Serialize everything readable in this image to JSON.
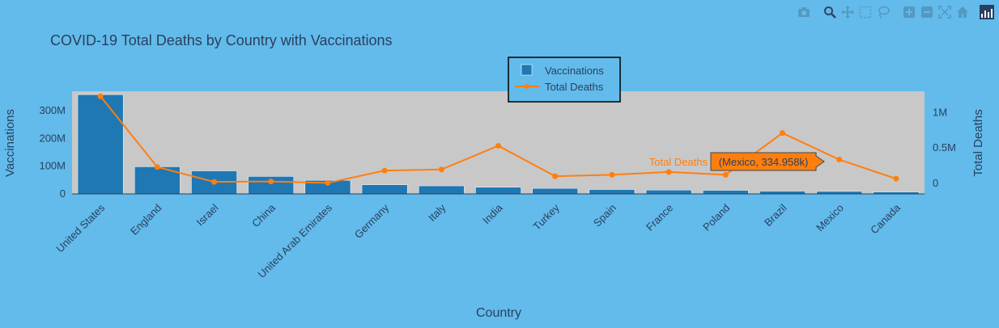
{
  "modebar": {
    "icons": [
      "camera-icon",
      "zoom-icon",
      "pan-icon",
      "box-select-icon",
      "lasso-icon",
      "zoom-in-icon",
      "zoom-out-icon",
      "autoscale-icon",
      "reset-axes-icon",
      "plotly-logo-icon"
    ]
  },
  "colors": {
    "background": "#62bbea",
    "plot_bg": "#c8c8c8",
    "bar": "#1f77b4",
    "line": "#ff7f0e",
    "tooltip_bg": "#ff7f0e",
    "text": "#2a3f5f"
  },
  "chart_data": {
    "type": "bar",
    "title": "COVID-19 Total Deaths by Country with Vaccinations",
    "xlabel": "Country",
    "ylabel": "Vaccinations",
    "y2label": "Total Deaths",
    "categories": [
      "United States",
      "England",
      "Israel",
      "China",
      "United Arab Emirates",
      "Germany",
      "Italy",
      "India",
      "Turkey",
      "Spain",
      "France",
      "Poland",
      "Brazil",
      "Mexico",
      "Canada"
    ],
    "ylim": [
      0,
      370000000
    ],
    "y2lim": [
      -150000,
      1300000
    ],
    "yticks": [
      0,
      100000000,
      200000000,
      300000000
    ],
    "ytick_labels": [
      "0",
      "100M",
      "200M",
      "300M"
    ],
    "y2ticks": [
      0,
      500000,
      1000000
    ],
    "y2tick_labels": [
      "0",
      "0.5M",
      "1M"
    ],
    "series": [
      {
        "name": "Vaccinations",
        "type": "bar",
        "axis": "y",
        "values": [
          358000000,
          98000000,
          83000000,
          63000000,
          49000000,
          33000000,
          29000000,
          24000000,
          20000000,
          16000000,
          14000000,
          13000000,
          10000000,
          9000000,
          7000000
        ]
      },
      {
        "name": "Total Deaths",
        "type": "line",
        "axis": "y2",
        "values": [
          1230000,
          230000,
          20000,
          25000,
          5000,
          180000,
          195000,
          530000,
          100000,
          120000,
          160000,
          120000,
          710000,
          334958,
          65000
        ]
      }
    ],
    "legend": {
      "position": "top-center",
      "entries": [
        "Vaccinations",
        "Total Deaths"
      ]
    },
    "hover": {
      "series_label": "Total Deaths",
      "text": "(Mexico, 334.958k)",
      "category": "Mexico"
    },
    "grid": false
  }
}
